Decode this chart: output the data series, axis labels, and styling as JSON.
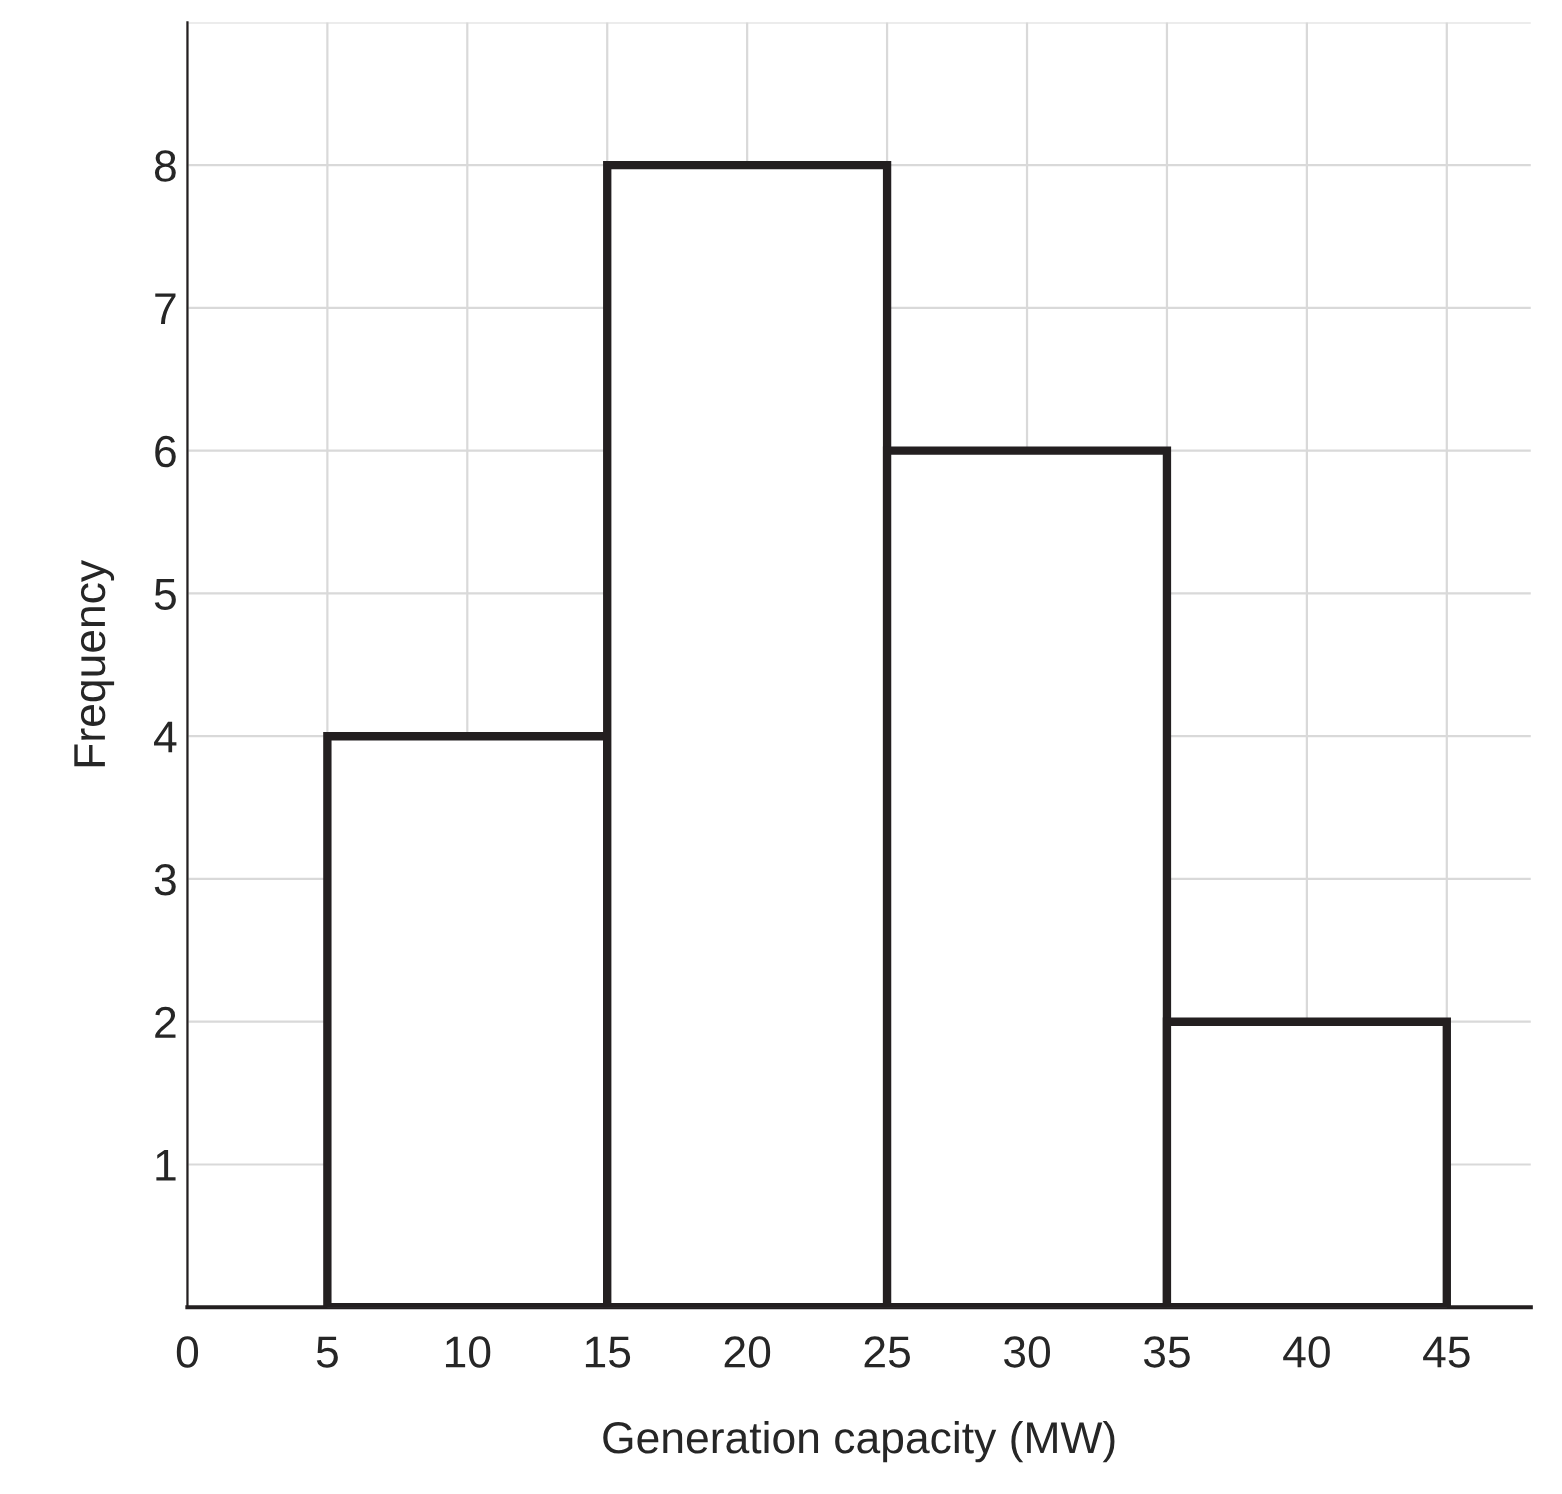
{
  "chart_data": {
    "type": "histogram",
    "xlabel": "Generation capacity (MW)",
    "ylabel": "Frequency",
    "bins": [
      5,
      15,
      25,
      35,
      45
    ],
    "values": [
      4,
      8,
      6,
      2
    ],
    "color": "#231f20",
    "xlim": [
      0,
      48
    ],
    "xticks": [
      0,
      5,
      10,
      15,
      20,
      25,
      30,
      35,
      40,
      45
    ],
    "ylim": [
      0,
      9
    ],
    "yticks": [
      1,
      2,
      3,
      4,
      5,
      6,
      7,
      8,
      {
        "value": 9,
        "label": null
      }
    ],
    "grid": true
  }
}
